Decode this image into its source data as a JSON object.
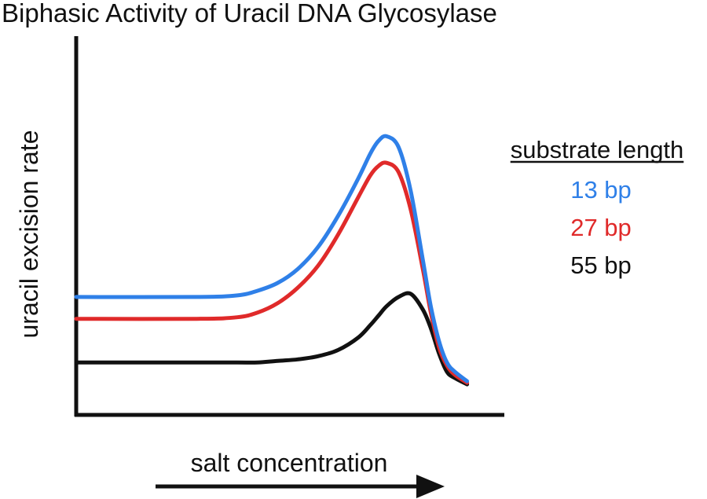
{
  "chart_data": {
    "type": "line",
    "title": "Biphasic Activity of Uracil DNA Glycosylase",
    "xlabel": "salt concentration",
    "ylabel": "uracil excision rate",
    "xlim": [
      0,
      100
    ],
    "ylim": [
      0,
      100
    ],
    "grid": false,
    "legend": {
      "title": "substrate length",
      "position": "right"
    },
    "x": [
      0,
      30,
      40,
      45,
      50,
      55,
      60,
      65,
      70,
      73,
      75,
      77,
      80,
      83,
      86,
      88,
      90,
      92,
      94,
      97
    ],
    "series": [
      {
        "name": "13 bp",
        "color": "#2f80e8",
        "values": [
          30,
          30,
          30.5,
          32,
          34.5,
          39,
          46,
          56,
          68,
          76,
          80,
          81.5,
          78,
          64,
          42,
          27,
          16,
          9,
          6,
          3
        ]
      },
      {
        "name": "27 bp",
        "color": "#e02a2a",
        "values": [
          23,
          23,
          23.5,
          25,
          28,
          33,
          40,
          50,
          62,
          69,
          72,
          73,
          70,
          58,
          39,
          25,
          14,
          8,
          5,
          2.5
        ]
      },
      {
        "name": "55 bp",
        "color": "#111111",
        "values": [
          9,
          9,
          9,
          9,
          9.5,
          10,
          11,
          13,
          17,
          21,
          24,
          27,
          30,
          31,
          26,
          20,
          12,
          6,
          4,
          2
        ]
      }
    ]
  }
}
